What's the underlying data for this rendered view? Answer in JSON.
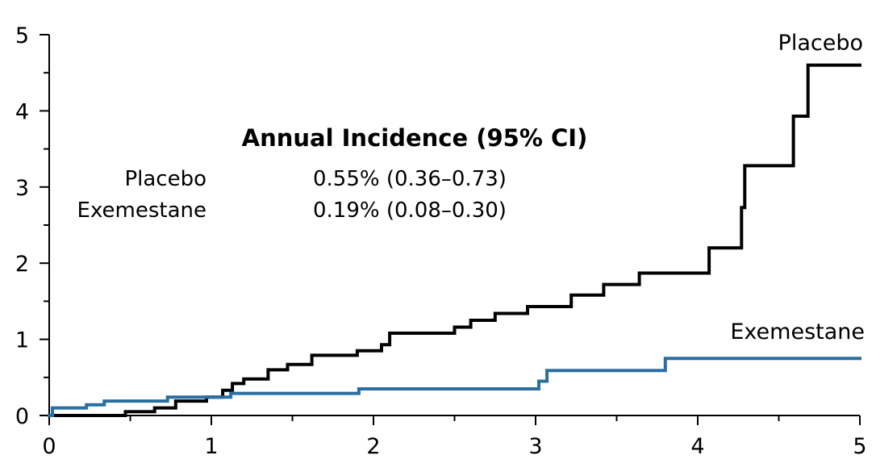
{
  "chart_data": {
    "type": "line",
    "step": true,
    "xlim": [
      0,
      5
    ],
    "ylim": [
      0,
      5
    ],
    "x_ticks": [
      "0",
      "1",
      "2",
      "3",
      "4",
      "5"
    ],
    "y_ticks": [
      "0",
      "1",
      "2",
      "3",
      "4",
      "5"
    ],
    "minor_x_step": 0.5,
    "minor_y_step": 0.5,
    "grid": false,
    "series": [
      {
        "name": "Placebo",
        "color": "#000000",
        "points": [
          [
            0,
            0
          ],
          [
            0.47,
            0
          ],
          [
            0.47,
            0.05
          ],
          [
            0.65,
            0.05
          ],
          [
            0.65,
            0.1
          ],
          [
            0.78,
            0.1
          ],
          [
            0.78,
            0.19
          ],
          [
            0.97,
            0.19
          ],
          [
            0.97,
            0.24
          ],
          [
            1.07,
            0.24
          ],
          [
            1.07,
            0.33
          ],
          [
            1.13,
            0.33
          ],
          [
            1.13,
            0.42
          ],
          [
            1.2,
            0.42
          ],
          [
            1.2,
            0.48
          ],
          [
            1.35,
            0.48
          ],
          [
            1.35,
            0.6
          ],
          [
            1.47,
            0.6
          ],
          [
            1.47,
            0.67
          ],
          [
            1.62,
            0.67
          ],
          [
            1.62,
            0.79
          ],
          [
            1.9,
            0.79
          ],
          [
            1.9,
            0.85
          ],
          [
            2.05,
            0.85
          ],
          [
            2.05,
            0.93
          ],
          [
            2.1,
            0.93
          ],
          [
            2.1,
            1.08
          ],
          [
            2.5,
            1.08
          ],
          [
            2.5,
            1.16
          ],
          [
            2.6,
            1.16
          ],
          [
            2.6,
            1.25
          ],
          [
            2.75,
            1.25
          ],
          [
            2.75,
            1.34
          ],
          [
            2.95,
            1.34
          ],
          [
            2.95,
            1.43
          ],
          [
            3.22,
            1.43
          ],
          [
            3.22,
            1.58
          ],
          [
            3.42,
            1.58
          ],
          [
            3.42,
            1.72
          ],
          [
            3.64,
            1.72
          ],
          [
            3.64,
            1.87
          ],
          [
            4.07,
            1.87
          ],
          [
            4.07,
            2.2
          ],
          [
            4.27,
            2.2
          ],
          [
            4.27,
            2.73
          ],
          [
            4.29,
            2.73
          ],
          [
            4.29,
            3.28
          ],
          [
            4.59,
            3.28
          ],
          [
            4.59,
            3.93
          ],
          [
            4.68,
            3.93
          ],
          [
            4.68,
            4.6
          ],
          [
            5.0,
            4.6
          ]
        ]
      },
      {
        "name": "Exemestane",
        "color": "#2a6fa0",
        "points": [
          [
            0,
            0
          ],
          [
            0.02,
            0
          ],
          [
            0.02,
            0.1
          ],
          [
            0.23,
            0.1
          ],
          [
            0.23,
            0.14
          ],
          [
            0.34,
            0.14
          ],
          [
            0.34,
            0.19
          ],
          [
            0.73,
            0.19
          ],
          [
            0.73,
            0.24
          ],
          [
            1.12,
            0.24
          ],
          [
            1.12,
            0.29
          ],
          [
            1.91,
            0.29
          ],
          [
            1.91,
            0.35
          ],
          [
            3.02,
            0.35
          ],
          [
            3.02,
            0.45
          ],
          [
            3.07,
            0.45
          ],
          [
            3.07,
            0.59
          ],
          [
            3.8,
            0.59
          ],
          [
            3.8,
            0.75
          ],
          [
            5.0,
            0.75
          ]
        ]
      }
    ],
    "annotation": {
      "title": "Annual Incidence (95% CI)",
      "rows": [
        {
          "label": "Placebo",
          "value": "0.55% (0.36–0.73)"
        },
        {
          "label": "Exemestane",
          "value": "0.19% (0.08–0.30)"
        }
      ]
    }
  }
}
